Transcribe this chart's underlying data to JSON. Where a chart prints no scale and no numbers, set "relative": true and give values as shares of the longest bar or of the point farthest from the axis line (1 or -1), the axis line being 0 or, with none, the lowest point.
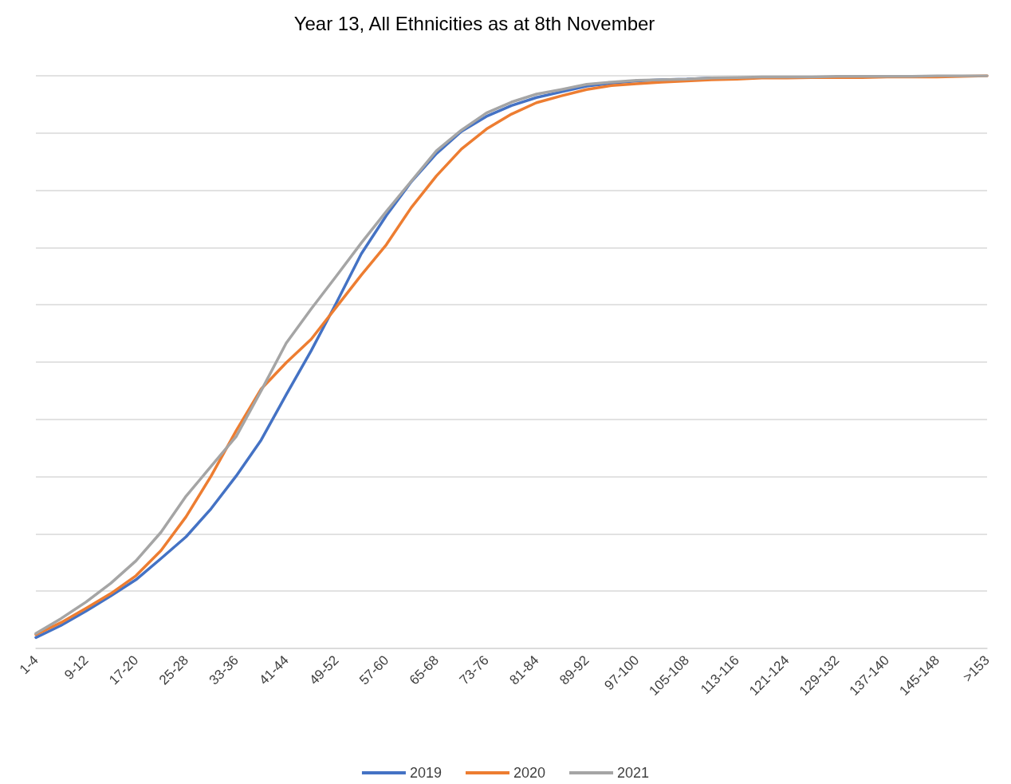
{
  "chart_data": {
    "type": "line",
    "title": "Year 13, All Ethnicities as at 8th November",
    "relative": true,
    "grid": "y",
    "legend": "bottom",
    "categories": [
      "1-4",
      null,
      "9-12",
      null,
      "17-20",
      null,
      "25-28",
      null,
      "33-36",
      null,
      "41-44",
      null,
      "49-52",
      null,
      "57-60",
      null,
      "65-68",
      null,
      "73-76",
      null,
      "81-84",
      null,
      "89-92",
      null,
      "97-100",
      null,
      "105-108",
      null,
      "113-116",
      null,
      "121-124",
      null,
      "129-132",
      null,
      "137-140",
      null,
      "145-148",
      null,
      ">153"
    ],
    "series": [
      {
        "name": "2019",
        "color": "#4472c4",
        "values": [
          0.019,
          0.04,
          0.065,
          0.092,
          0.12,
          0.157,
          0.195,
          0.244,
          0.301,
          0.364,
          0.443,
          0.52,
          0.603,
          0.689,
          0.756,
          0.815,
          0.864,
          0.903,
          0.929,
          0.948,
          0.962,
          0.972,
          0.982,
          0.987,
          0.991,
          0.993,
          0.994,
          0.996,
          null,
          null,
          null,
          null,
          null,
          null,
          null,
          null,
          null,
          null,
          null
        ]
      },
      {
        "name": "2020",
        "color": "#ed7d31",
        "values": [
          0.024,
          0.045,
          0.07,
          0.096,
          0.127,
          0.171,
          0.23,
          0.301,
          0.38,
          0.453,
          0.499,
          0.54,
          0.596,
          0.652,
          0.705,
          0.77,
          0.825,
          0.872,
          0.907,
          0.933,
          0.953,
          0.965,
          0.976,
          0.983,
          0.986,
          0.989,
          0.991,
          0.993,
          0.994,
          0.996,
          0.996,
          0.997,
          0.997,
          0.997,
          0.998,
          0.998,
          0.998,
          0.999,
          1
        ]
      },
      {
        "name": "2021",
        "color": "#a5a5a5",
        "values": [
          0.026,
          0.052,
          0.081,
          0.114,
          0.153,
          0.203,
          0.266,
          0.318,
          0.37,
          0.45,
          0.533,
          0.593,
          0.65,
          0.708,
          0.763,
          0.816,
          0.869,
          0.905,
          0.935,
          0.954,
          0.968,
          0.976,
          0.985,
          0.989,
          0.992,
          0.993,
          0.994,
          0.996,
          0.997,
          0.998,
          0.998,
          0.998,
          0.999,
          0.999,
          0.999,
          0.999,
          1,
          1,
          1
        ]
      }
    ]
  }
}
